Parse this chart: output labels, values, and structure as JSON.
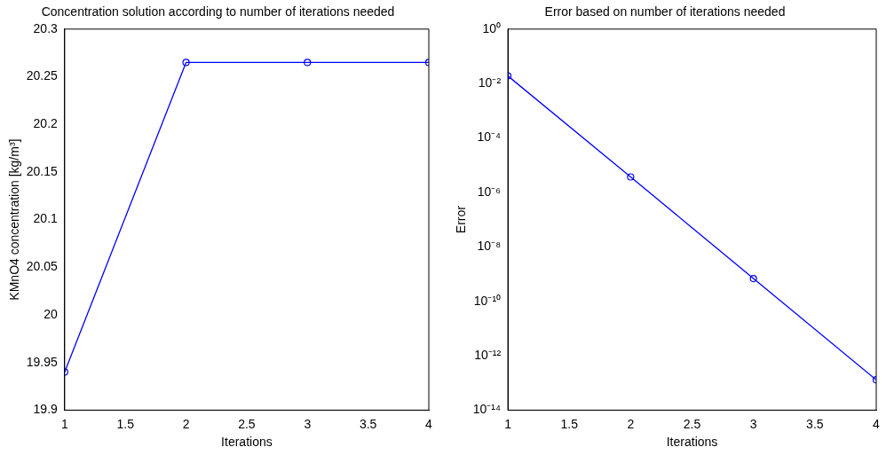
{
  "chart_data": [
    {
      "type": "line",
      "title": "Concentration solution according to number of iterations needed",
      "xlabel": "Iterations",
      "ylabel": "KMnO4 concentration [kg/m³]",
      "x": [
        1,
        2,
        3,
        4
      ],
      "series": [
        {
          "color": "#0000ff",
          "values": [
            19.94,
            20.265,
            20.265,
            20.265
          ]
        }
      ],
      "xlim": [
        1,
        4
      ],
      "xticks": [
        1,
        1.5,
        2,
        2.5,
        3,
        3.5,
        4
      ],
      "ylim": [
        19.9,
        20.3
      ],
      "yticks": [
        19.9,
        19.95,
        20,
        20.05,
        20.1,
        20.15,
        20.2,
        20.25,
        20.3
      ],
      "marker": "circle",
      "line_style": "solid",
      "grid": false,
      "legend": false
    },
    {
      "type": "line",
      "title": "Error based on number of iterations needed",
      "xlabel": "Iterations",
      "ylabel": "Error",
      "x": [
        1,
        2,
        3,
        4
      ],
      "series": [
        {
          "color": "#0000ff",
          "values": [
            0.019,
            3.7e-06,
            6.8e-10,
            1.3e-13
          ]
        }
      ],
      "xlim": [
        1,
        4
      ],
      "xticks": [
        1,
        1.5,
        2,
        2.5,
        3,
        3.5,
        4
      ],
      "ylim": [
        1e-14,
        1
      ],
      "log": "y",
      "yticks": [
        {
          "value": 1e-14,
          "label": "10⁻¹⁴"
        },
        {
          "value": 1e-12,
          "label": "10⁻¹²"
        },
        {
          "value": 1e-10,
          "label": "10⁻¹⁰"
        },
        {
          "value": 1e-08,
          "label": "10⁻⁸"
        },
        {
          "value": 1e-06,
          "label": "10⁻⁶"
        },
        {
          "value": 0.0001,
          "label": "10⁻⁴"
        },
        {
          "value": 0.01,
          "label": "10⁻²"
        },
        {
          "value": 1,
          "label": "10⁰"
        }
      ],
      "marker": "circle",
      "line_style": "solid",
      "grid": false,
      "legend": false
    }
  ]
}
